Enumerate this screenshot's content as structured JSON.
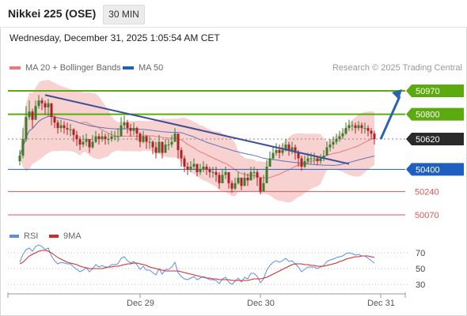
{
  "header": {
    "instrument": "Nikkei 225 (OSE)",
    "timeframe": "30 MIN",
    "datetime": "Wednesday, December 31, 2025 1:05:54 AM CET"
  },
  "legend": {
    "ma20_label": "MA 20 + Bollinger Bands",
    "ma50_label": "MA 50",
    "copyright": "Research © 2025 Trading Central",
    "rsi_label": "RSI",
    "ma9_label": "9MA"
  },
  "colors": {
    "candle_up": "#3a7d2c",
    "candle_down": "#b02020",
    "resistance": "#5aaa10",
    "support": "#1f5fbf",
    "target_down": "#e05555",
    "current_price_box": "#2a2a2a",
    "ma20": "#e77a7a",
    "bollinger_fill": "#f7c9c9",
    "ma50": "#5f74b8",
    "trendline": "#3a4f96",
    "arrow": "#2b63b0",
    "rsi": "#5b8ee6",
    "rsi_ma9": "#d12a2a"
  },
  "chart_data": [
    {
      "type": "candlestick",
      "title": "Nikkei 225 (OSE)",
      "x_tick_labels": [
        "Dec 29",
        "Dec 30",
        "Dec 31"
      ],
      "levels": [
        {
          "price": 50970,
          "kind": "resistance"
        },
        {
          "price": 50800,
          "kind": "resistance"
        },
        {
          "price": 50620,
          "kind": "current"
        },
        {
          "price": 50400,
          "kind": "support"
        },
        {
          "price": 50240,
          "kind": "target"
        },
        {
          "price": 50070,
          "kind": "target"
        }
      ],
      "close": [
        50500,
        50620,
        50780,
        50820,
        50760,
        50860,
        50900,
        50880,
        50850,
        50880,
        50780,
        50740,
        50700,
        50720,
        50700,
        50690,
        50690,
        50650,
        50620,
        50580,
        50600,
        50620,
        50560,
        50600,
        50640,
        50620,
        50640,
        50620,
        50620,
        50640,
        50640,
        50640,
        50720,
        50740,
        50700,
        50680,
        50700,
        50660,
        50600,
        50640,
        50600,
        50600,
        50560,
        50520,
        50600,
        50520,
        50580,
        50580,
        50600,
        50660,
        50540,
        50480,
        50420,
        50400,
        50420,
        50440,
        50380,
        50400,
        50420,
        50400,
        50380,
        50380,
        50360,
        50300,
        50360,
        50380,
        50300,
        50260,
        50300,
        50340,
        50280,
        50340,
        50320,
        50380,
        50380,
        50340,
        50240,
        50300,
        50420,
        50480,
        50520,
        50540,
        50520,
        50540,
        50580,
        50540,
        50560,
        50520,
        50480,
        50420,
        50460,
        50480,
        50480,
        50480,
        50460,
        50480,
        50500,
        50560,
        50580,
        50600,
        50620,
        50640,
        50660,
        50700,
        50720,
        50720,
        50700,
        50720,
        50700,
        50700,
        50680,
        50660,
        50620
      ],
      "high": [
        50540,
        50700,
        50860,
        50900,
        50840,
        50900,
        50940,
        50920,
        50900,
        50910,
        50860,
        50790,
        50760,
        50760,
        50750,
        50740,
        50730,
        50700,
        50680,
        50640,
        50650,
        50660,
        50620,
        50650,
        50680,
        50660,
        50680,
        50660,
        50660,
        50680,
        50680,
        50700,
        50780,
        50790,
        50760,
        50730,
        50740,
        50710,
        50670,
        50680,
        50650,
        50640,
        50610,
        50600,
        50650,
        50600,
        50620,
        50620,
        50650,
        50700,
        50660,
        50560,
        50500,
        50450,
        50460,
        50480,
        50440,
        50440,
        50460,
        50440,
        50420,
        50420,
        50420,
        50380,
        50400,
        50420,
        50360,
        50320,
        50340,
        50380,
        50340,
        50380,
        50370,
        50420,
        50420,
        50400,
        50340,
        50360,
        50470,
        50530,
        50560,
        50590,
        50580,
        50590,
        50620,
        50600,
        50600,
        50580,
        50540,
        50500,
        50500,
        50520,
        50520,
        50520,
        50500,
        50510,
        50540,
        50600,
        50620,
        50640,
        50660,
        50680,
        50700,
        50740,
        50760,
        50750,
        50740,
        50750,
        50740,
        50740,
        50720,
        50700,
        50680
      ],
      "low": [
        50430,
        50480,
        50600,
        50760,
        50700,
        50760,
        50840,
        50830,
        50800,
        50790,
        50720,
        50700,
        50660,
        50670,
        50660,
        50650,
        50640,
        50600,
        50570,
        50540,
        50560,
        50570,
        50520,
        50550,
        50590,
        50580,
        50600,
        50580,
        50580,
        50600,
        50610,
        50600,
        50640,
        50690,
        50660,
        50640,
        50650,
        50610,
        50560,
        50590,
        50550,
        50550,
        50510,
        50480,
        50530,
        50480,
        50530,
        50540,
        50560,
        50600,
        50480,
        50420,
        50380,
        50360,
        50380,
        50400,
        50350,
        50360,
        50380,
        50360,
        50340,
        50340,
        50310,
        50260,
        50300,
        50330,
        50260,
        50230,
        50250,
        50290,
        50250,
        50280,
        50280,
        50330,
        50330,
        50280,
        50220,
        50240,
        50300,
        50420,
        50470,
        50500,
        50480,
        50500,
        50530,
        50500,
        50510,
        50470,
        50420,
        50390,
        50410,
        50440,
        50440,
        50440,
        50430,
        50440,
        50460,
        50500,
        50530,
        50550,
        50580,
        50600,
        50620,
        50650,
        50680,
        50680,
        50660,
        50680,
        50660,
        50660,
        50640,
        50620,
        50580
      ]
    },
    {
      "type": "line",
      "series": [
        {
          "name": "RSI",
          "values": [
            58,
            68,
            74,
            76,
            72,
            78,
            80,
            78,
            74,
            76,
            66,
            60,
            56,
            58,
            57,
            56,
            56,
            52,
            49,
            46,
            48,
            51,
            46,
            50,
            55,
            52,
            54,
            52,
            52,
            55,
            55,
            56,
            63,
            65,
            60,
            57,
            59,
            55,
            49,
            53,
            48,
            48,
            45,
            42,
            50,
            43,
            49,
            49,
            52,
            58,
            45,
            40,
            37,
            36,
            38,
            40,
            36,
            38,
            40,
            38,
            36,
            36,
            35,
            31,
            37,
            39,
            33,
            30,
            34,
            38,
            33,
            39,
            37,
            44,
            44,
            40,
            32,
            37,
            48,
            54,
            58,
            60,
            58,
            60,
            63,
            59,
            60,
            56,
            52,
            46,
            49,
            52,
            52,
            52,
            50,
            52,
            54,
            59,
            61,
            62,
            64,
            65,
            66,
            69,
            70,
            69,
            67,
            68,
            66,
            66,
            63,
            60,
            57
          ]
        },
        {
          "name": "9MA",
          "values": [
            56,
            58,
            62,
            66,
            68,
            70,
            72,
            73,
            73,
            72,
            70,
            67,
            64,
            62,
            60,
            58,
            57,
            56,
            55,
            53,
            52,
            51,
            50,
            50,
            50,
            50,
            50,
            51,
            52,
            52,
            53,
            53,
            54,
            55,
            56,
            56,
            57,
            57,
            56,
            55,
            54,
            52,
            51,
            50,
            49,
            48,
            47,
            47,
            47,
            47,
            47,
            46,
            45,
            44,
            43,
            42,
            41,
            40,
            39,
            38,
            38,
            37,
            37,
            36,
            36,
            36,
            36,
            35,
            35,
            35,
            35,
            35,
            35,
            36,
            37,
            37,
            37,
            38,
            39,
            41,
            43,
            45,
            47,
            49,
            51,
            53,
            55,
            56,
            56,
            56,
            55,
            55,
            54,
            54,
            53,
            53,
            53,
            54,
            55,
            56,
            57,
            59,
            60,
            62,
            63,
            64,
            65,
            65,
            66,
            66,
            66,
            65,
            64
          ]
        }
      ],
      "y_tick_labels": [
        "70",
        "50",
        "30"
      ],
      "ylim": [
        20,
        85
      ]
    }
  ]
}
